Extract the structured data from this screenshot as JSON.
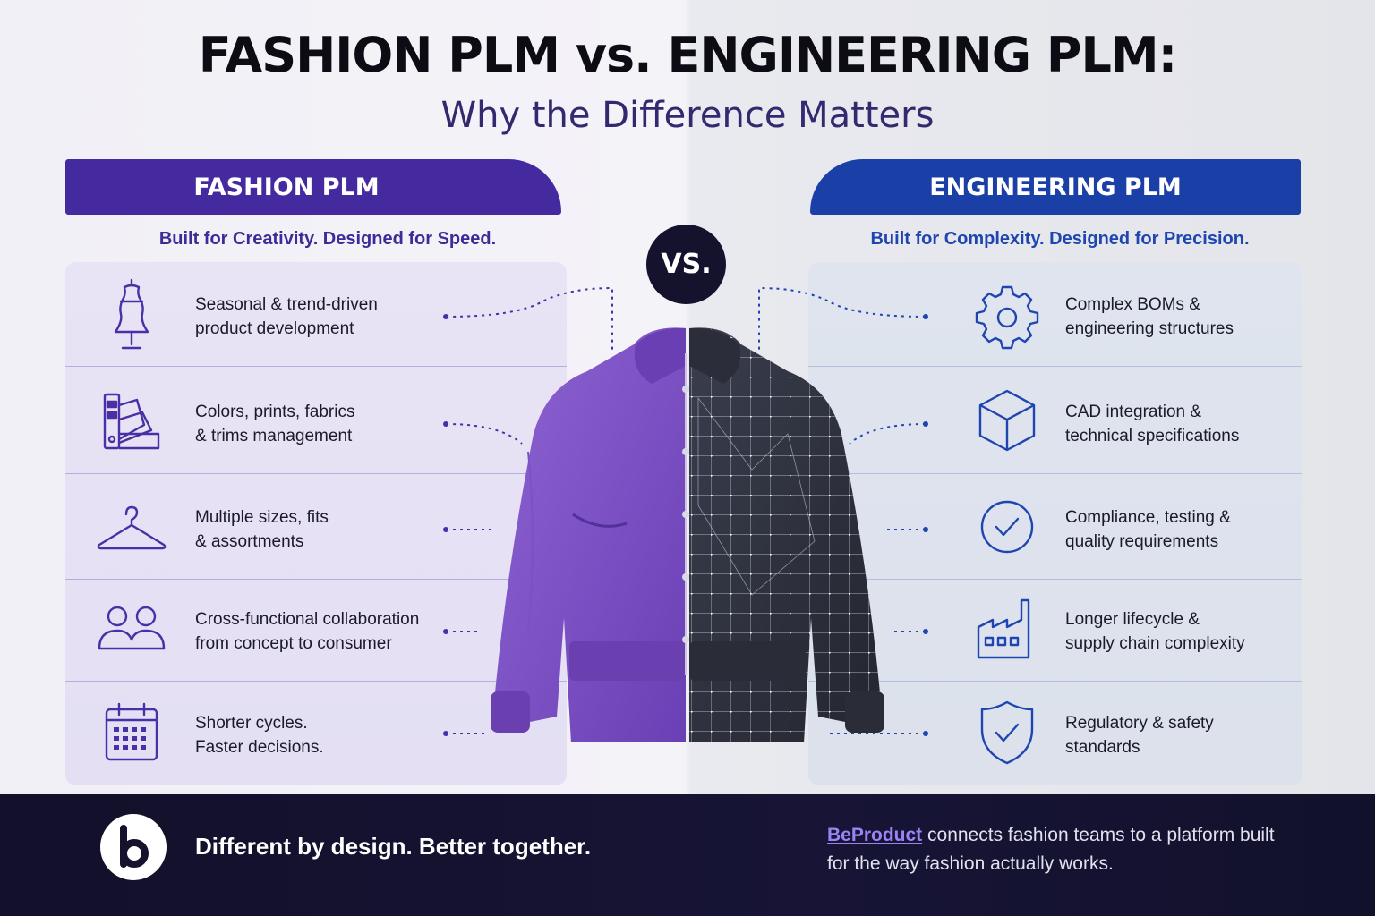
{
  "header": {
    "title": "FASHION PLM vs. ENGINEERING PLM:",
    "subtitle": "Why the Difference Matters"
  },
  "colors": {
    "fashion_accent": "#442a9e",
    "engineering_accent": "#1a3fa6",
    "footer_bg": "#15122e",
    "brand_link": "#9a83f3"
  },
  "vs_badge": "VS.",
  "fashion": {
    "banner": "FASHION PLM",
    "tagline": "Built for Creativity. Designed for Speed.",
    "items": [
      {
        "icon": "dress-form-icon",
        "line1": "Seasonal & trend-driven",
        "line2": "product development"
      },
      {
        "icon": "color-swatch-icon",
        "line1": "Colors, prints, fabrics",
        "line2": "& trims management"
      },
      {
        "icon": "hanger-icon",
        "line1": "Multiple sizes, fits",
        "line2": "& assortments"
      },
      {
        "icon": "team-icon",
        "line1": "Cross-functional collaboration",
        "line2": "from concept to consumer"
      },
      {
        "icon": "calendar-icon",
        "line1": "Shorter cycles.",
        "line2": "Faster decisions."
      }
    ]
  },
  "engineering": {
    "banner": "ENGINEERING PLM",
    "tagline": "Built for Complexity. Designed for Precision.",
    "items": [
      {
        "icon": "gear-icon",
        "line1": "Complex BOMs &",
        "line2": "engineering structures"
      },
      {
        "icon": "cube-icon",
        "line1": "CAD integration &",
        "line2": "technical specifications"
      },
      {
        "icon": "check-circle-icon",
        "line1": "Compliance, testing &",
        "line2": "quality requirements"
      },
      {
        "icon": "factory-icon",
        "line1": "Longer lifecycle &",
        "line2": "supply chain complexity"
      },
      {
        "icon": "shield-check-icon",
        "line1": "Regulatory & safety",
        "line2": "standards"
      }
    ]
  },
  "footer": {
    "logo_icon": "beproduct-logo-icon",
    "slogan": "Different by design. Better together.",
    "brand": "BeProduct",
    "copy_rest": " connects fashion teams to a platform built for the way fashion actually works."
  }
}
